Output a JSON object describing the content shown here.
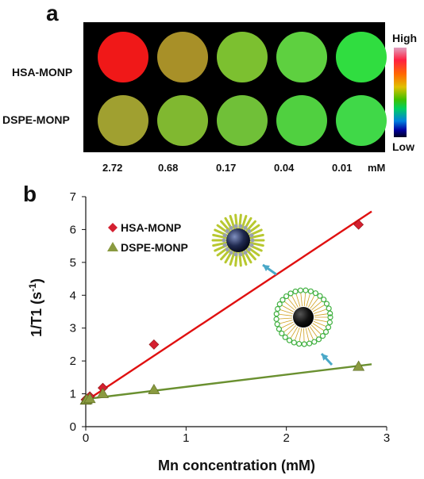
{
  "panel_a": {
    "letter": "a",
    "rows": [
      "HSA-MONP",
      "DSPE-MONP"
    ],
    "concentrations": [
      "2.72",
      "0.68",
      "0.17",
      "0.04",
      "0.01"
    ],
    "unit": "mM",
    "colorbar": {
      "high": "High",
      "low": "Low"
    },
    "well_colors": [
      [
        "#f01818",
        "#a89028",
        "#7cc030",
        "#5ed040",
        "#30dd40"
      ],
      [
        "#a0a030",
        "#80b830",
        "#70c038",
        "#50d040",
        "#40d848"
      ]
    ]
  },
  "panel_b": {
    "letter": "b"
  },
  "chart_data": {
    "type": "scatter",
    "xlabel": "Mn concentration (mM)",
    "ylabel_main": "1/T1 (s",
    "ylabel_sup": "-1",
    "ylabel_tail": ")",
    "xlim": [
      0,
      3
    ],
    "ylim": [
      0,
      7
    ],
    "xticks": [
      0,
      1,
      2,
      3
    ],
    "yticks": [
      0,
      1,
      2,
      3,
      4,
      5,
      6,
      7
    ],
    "grid": false,
    "legend_position": "upper-left",
    "series": [
      {
        "name": "HSA-MONP",
        "color": "#d42030",
        "line_color": "#e01010",
        "marker": "diamond",
        "x": [
          0,
          0.01,
          0.04,
          0.17,
          0.68,
          2.72
        ],
        "y": [
          0.82,
          0.85,
          0.92,
          1.18,
          2.5,
          6.15
        ],
        "fit": {
          "x": [
            0,
            2.85
          ],
          "y": [
            0.78,
            6.55
          ]
        }
      },
      {
        "name": "DSPE-MONP",
        "color": "#8a9a40",
        "line_color": "#6a9030",
        "marker": "triangle",
        "x": [
          0,
          0.01,
          0.04,
          0.17,
          0.68,
          2.72
        ],
        "y": [
          0.8,
          0.82,
          0.85,
          1.0,
          1.12,
          1.83
        ],
        "fit": {
          "x": [
            0,
            2.85
          ],
          "y": [
            0.84,
            1.9
          ]
        }
      }
    ]
  }
}
